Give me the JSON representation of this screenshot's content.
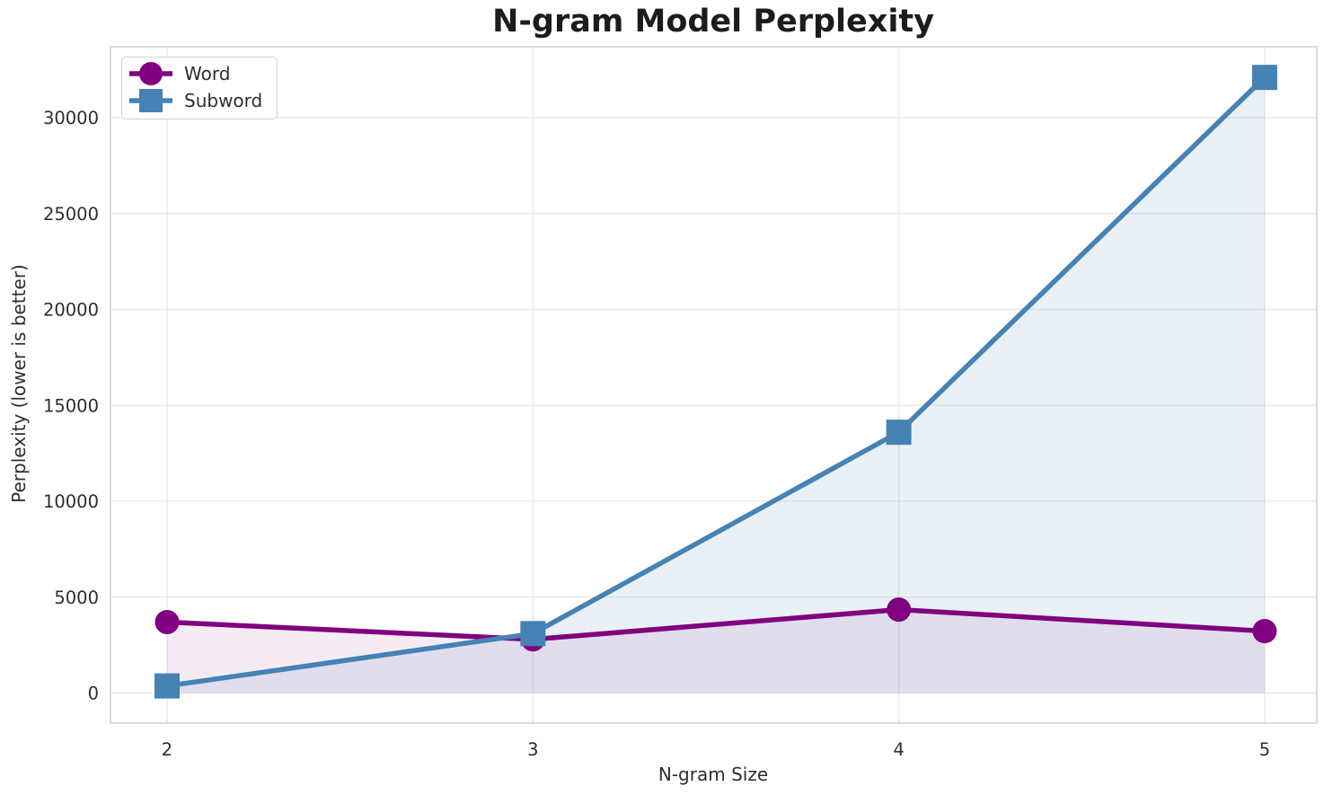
{
  "chart_data": {
    "type": "line",
    "title": "N-gram Model Perplexity",
    "xlabel": "N-gram Size",
    "ylabel": "Perplexity (lower is better)",
    "x": [
      2,
      3,
      4,
      5
    ],
    "x_tick_labels": [
      "2",
      "3",
      "4",
      "5"
    ],
    "y_ticks": [
      0,
      5000,
      10000,
      15000,
      20000,
      25000,
      30000
    ],
    "y_tick_labels": [
      "0",
      "5000",
      "10000",
      "15000",
      "20000",
      "25000",
      "30000"
    ],
    "xlim": [
      1.84,
      5.14
    ],
    "ylim": [
      -1500,
      33750
    ],
    "grid": true,
    "baseline": 0,
    "legend": {
      "position": "upper left",
      "entries": [
        "Word",
        "Subword"
      ]
    },
    "series": [
      {
        "name": "Word",
        "marker": "circle",
        "color": "#800080",
        "fill_color": "rgba(128,0,128,0.08)",
        "values": [
          3700,
          2800,
          4350,
          3230
        ]
      },
      {
        "name": "Subword",
        "marker": "square",
        "color": "#4682b4",
        "fill_color": "rgba(70,130,180,0.12)",
        "values": [
          370,
          3100,
          13600,
          32100
        ]
      }
    ],
    "style": {
      "grid_color": "#e7e7e7",
      "border_color": "#cfcfcf",
      "tick_label_color": "#2e2e2e",
      "title_color": "#1c1c1c"
    }
  }
}
